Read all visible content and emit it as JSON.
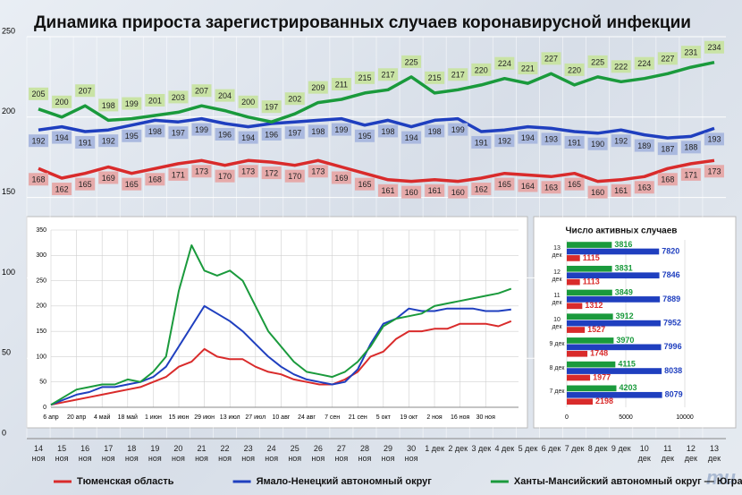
{
  "chart_data": [
    {
      "type": "line",
      "title": "Динамика прироста зарегистрированных случаев коронавирусной инфекции",
      "categories": [
        "14 ноя",
        "15 ноя",
        "16 ноя",
        "17 ноя",
        "18 ноя",
        "19 ноя",
        "20 ноя",
        "21 ноя",
        "22 ноя",
        "23 ноя",
        "24 ноя",
        "25 ноя",
        "26 ноя",
        "27 ноя",
        "28 ноя",
        "29 ноя",
        "30 ноя",
        "1 дек",
        "2 дек",
        "3 дек",
        "4 дек",
        "5 дек",
        "6 дек",
        "7 дек",
        "8 дек",
        "9 дек",
        "10 дек",
        "11 дек",
        "12 дек",
        "13 дек"
      ],
      "series": [
        {
          "name": "Тюменская область",
          "color": "#d92b2b",
          "label_color": "#e6aaaa",
          "label_side": "below",
          "values": [
            168,
            162,
            165,
            169,
            165,
            168,
            171,
            173,
            170,
            173,
            172,
            170,
            173,
            169,
            165,
            161,
            160,
            161,
            160,
            162,
            165,
            164,
            163,
            165,
            160,
            161,
            163,
            168,
            171,
            173
          ]
        },
        {
          "name": "Ямало-Ненецкий автономный округ",
          "color": "#1f3fbf",
          "label_color": "#aab9df",
          "label_side": "below",
          "values": [
            192,
            194,
            191,
            192,
            195,
            198,
            197,
            199,
            196,
            194,
            196,
            197,
            198,
            199,
            195,
            198,
            194,
            198,
            199,
            191,
            192,
            194,
            193,
            191,
            190,
            192,
            189,
            187,
            188,
            193
          ]
        },
        {
          "name": "Ханты-Мансийский автономный округ — Югра",
          "color": "#1a9a3c",
          "label_color": "#c9e3a5",
          "label_side": "above",
          "values": [
            205,
            200,
            207,
            198,
            199,
            201,
            203,
            207,
            204,
            200,
            197,
            202,
            209,
            211,
            215,
            217,
            225,
            215,
            217,
            220,
            224,
            221,
            227,
            220,
            225,
            222,
            224,
            227,
            231,
            234
          ]
        }
      ],
      "ylim": [
        0,
        250
      ],
      "yticks": [
        0,
        50,
        100,
        150,
        200,
        250
      ],
      "grid": true,
      "data_labels": true,
      "legend": "bottom"
    },
    {
      "type": "line",
      "x": [
        0,
        7,
        14,
        21,
        28,
        35,
        42,
        49,
        56,
        63,
        70,
        77,
        84,
        91,
        98,
        105,
        112,
        119,
        126,
        133,
        140,
        147,
        154,
        161,
        168,
        175,
        182,
        189,
        196,
        203,
        210,
        217,
        224,
        231,
        238,
        245,
        252
      ],
      "series": [
        {
          "color": "#d92b2b",
          "values": [
            5,
            10,
            15,
            20,
            25,
            30,
            35,
            40,
            50,
            60,
            80,
            90,
            115,
            100,
            95,
            95,
            80,
            70,
            65,
            55,
            50,
            45,
            45,
            55,
            70,
            100,
            110,
            135,
            150,
            150,
            155,
            155,
            165,
            165,
            165,
            160,
            170
          ]
        },
        {
          "color": "#1f3fbf",
          "values": [
            5,
            15,
            25,
            30,
            40,
            40,
            45,
            50,
            60,
            80,
            120,
            160,
            200,
            185,
            170,
            150,
            125,
            100,
            80,
            65,
            55,
            50,
            45,
            50,
            75,
            125,
            165,
            175,
            195,
            190,
            190,
            195,
            195,
            195,
            190,
            190,
            193
          ]
        },
        {
          "color": "#1a9a3c",
          "values": [
            5,
            20,
            35,
            40,
            45,
            45,
            55,
            50,
            70,
            100,
            230,
            320,
            270,
            260,
            270,
            250,
            200,
            150,
            120,
            90,
            70,
            65,
            60,
            70,
            90,
            120,
            160,
            175,
            180,
            185,
            200,
            205,
            210,
            215,
            220,
            225,
            234
          ]
        }
      ],
      "xlim": [
        0,
        256
      ],
      "xticks": [
        {
          "value": 0,
          "label": "6 апр"
        },
        {
          "value": 14,
          "label": "20 апр"
        },
        {
          "value": 28,
          "label": "4 май"
        },
        {
          "value": 42,
          "label": "18 май"
        },
        {
          "value": 56,
          "label": "1 июн"
        },
        {
          "value": 70,
          "label": "15 июн"
        },
        {
          "value": 84,
          "label": "29 июн"
        },
        {
          "value": 98,
          "label": "13 июл"
        },
        {
          "value": 112,
          "label": "27 июл"
        },
        {
          "value": 126,
          "label": "10 авг"
        },
        {
          "value": 140,
          "label": "24 авг"
        },
        {
          "value": 154,
          "label": "7 сен"
        },
        {
          "value": 168,
          "label": "21 сен"
        },
        {
          "value": 182,
          "label": "5 окт"
        },
        {
          "value": 196,
          "label": "19 окт"
        },
        {
          "value": 210,
          "label": "2 ноя"
        },
        {
          "value": 224,
          "label": "16 ноя"
        },
        {
          "value": 238,
          "label": "30 ноя"
        }
      ],
      "ylim": [
        0,
        350
      ],
      "yticks": [
        0,
        50,
        100,
        150,
        200,
        250,
        300,
        350
      ],
      "grid": true
    },
    {
      "type": "bar",
      "orientation": "horizontal",
      "title": "Число активных случаев",
      "categories": [
        "13 дек",
        "12 дек",
        "11 дек",
        "10 дек",
        "9 дек",
        "8 дек",
        "7 дек"
      ],
      "series": [
        {
          "color": "#1a9a3c",
          "values": [
            3816,
            3831,
            3849,
            3912,
            3970,
            4115,
            4203
          ]
        },
        {
          "color": "#1f3fbf",
          "values": [
            7820,
            7846,
            7889,
            7952,
            7996,
            8038,
            8079
          ]
        },
        {
          "color": "#d92b2b",
          "values": [
            1115,
            1113,
            1312,
            1527,
            1748,
            1977,
            2198
          ]
        }
      ],
      "xlim": [
        0,
        10000
      ],
      "xticks": [
        0,
        5000,
        10000
      ],
      "grid": true
    }
  ],
  "logo": "mu"
}
